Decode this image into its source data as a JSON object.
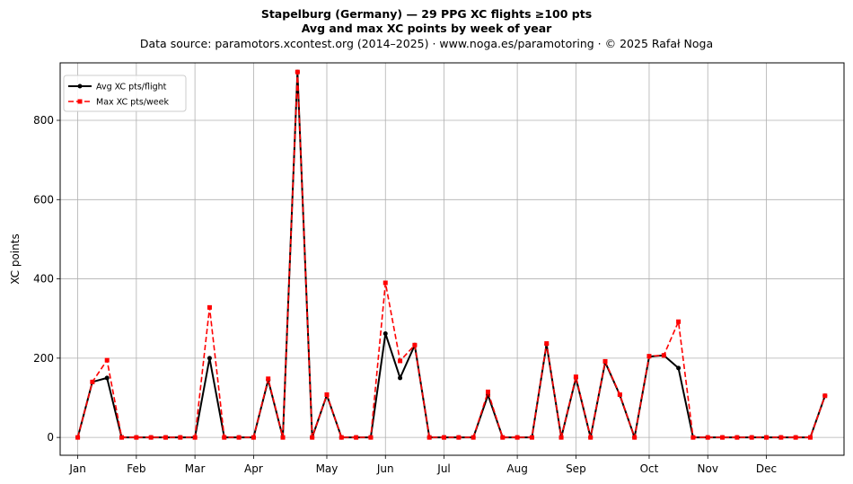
{
  "header": {
    "title_line1": "Stapelburg (Germany)  —  29 PPG XC flights ≥100 pts",
    "title_line2": "Avg and max XC points by week of year",
    "subtitle": "Data source: paramotors.xcontest.org (2014–2025)  ·  www.noga.es/paramotoring  ·  © 2025 Rafał Noga"
  },
  "chart_data": {
    "type": "line",
    "ylabel": "XC points",
    "xlabel": "",
    "ylim": [
      -45,
      945
    ],
    "xlim": [
      -0.2,
      53.3
    ],
    "grid": true,
    "legend_position": "top-left",
    "y_ticks": [
      0,
      200,
      400,
      600,
      800
    ],
    "x_ticks": [
      {
        "label": "Jan",
        "x": 1
      },
      {
        "label": "Feb",
        "x": 5
      },
      {
        "label": "Mar",
        "x": 9
      },
      {
        "label": "Apr",
        "x": 13
      },
      {
        "label": "May",
        "x": 18
      },
      {
        "label": "Jun",
        "x": 22
      },
      {
        "label": "Jul",
        "x": 26
      },
      {
        "label": "Aug",
        "x": 31
      },
      {
        "label": "Sep",
        "x": 35
      },
      {
        "label": "Oct",
        "x": 40
      },
      {
        "label": "Nov",
        "x": 44
      },
      {
        "label": "Dec",
        "x": 48
      }
    ],
    "x": [
      1,
      2,
      3,
      4,
      5,
      6,
      7,
      8,
      9,
      10,
      11,
      12,
      13,
      14,
      15,
      16,
      17,
      18,
      19,
      20,
      21,
      22,
      23,
      24,
      25,
      26,
      27,
      28,
      29,
      30,
      31,
      32,
      33,
      34,
      35,
      36,
      37,
      38,
      39,
      40,
      41,
      42,
      43,
      44,
      45,
      46,
      47,
      48,
      49,
      50,
      51,
      52
    ],
    "series": [
      {
        "name": "Avg XC pts/flight",
        "color": "#000000",
        "style": "solid",
        "marker": "circle",
        "values": [
          0,
          140,
          150,
          0,
          0,
          0,
          0,
          0,
          0,
          200,
          0,
          0,
          0,
          145,
          0,
          922,
          0,
          107,
          0,
          0,
          0,
          262,
          150,
          233,
          0,
          0,
          0,
          0,
          107,
          0,
          0,
          0,
          235,
          0,
          150,
          0,
          190,
          107,
          0,
          204,
          207,
          175,
          0,
          0,
          0,
          0,
          0,
          0,
          0,
          0,
          0,
          105
        ]
      },
      {
        "name": "Max XC pts/week",
        "color": "#ff0000",
        "style": "dashed",
        "marker": "square",
        "values": [
          0,
          140,
          195,
          0,
          0,
          0,
          0,
          0,
          0,
          328,
          0,
          0,
          0,
          148,
          0,
          922,
          0,
          108,
          0,
          0,
          0,
          390,
          193,
          233,
          0,
          0,
          0,
          0,
          115,
          0,
          0,
          0,
          237,
          0,
          153,
          0,
          192,
          108,
          0,
          205,
          207,
          292,
          0,
          0,
          0,
          0,
          0,
          0,
          0,
          0,
          0,
          105
        ]
      }
    ]
  }
}
